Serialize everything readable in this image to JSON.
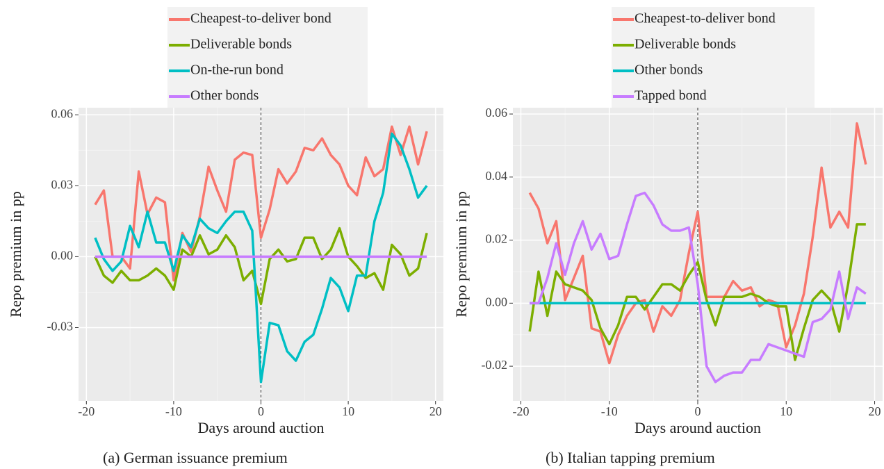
{
  "chart_data": [
    {
      "type": "line",
      "caption": "(a) German issuance premium",
      "xlabel": "Days around auction",
      "ylabel": "Repo premium in pp",
      "x": [
        -19,
        -18,
        -17,
        -16,
        -15,
        -14,
        -13,
        -12,
        -11,
        -10,
        -9,
        -8,
        -7,
        -6,
        -5,
        -4,
        -3,
        -2,
        -1,
        0,
        1,
        2,
        3,
        4,
        5,
        6,
        7,
        8,
        9,
        10,
        11,
        12,
        13,
        14,
        15,
        16,
        17,
        18,
        19
      ],
      "series": [
        {
          "name": "Cheapest-to-deliver bond",
          "color": "#F8766D",
          "values": [
            0.022,
            0.028,
            0.0,
            0.0,
            -0.005,
            0.036,
            0.018,
            0.025,
            0.023,
            -0.01,
            0.01,
            0.002,
            0.017,
            0.038,
            0.028,
            0.019,
            0.041,
            0.044,
            0.043,
            0.008,
            0.02,
            0.037,
            0.031,
            0.036,
            0.046,
            0.045,
            0.05,
            0.043,
            0.039,
            0.03,
            0.026,
            0.042,
            0.034,
            0.037,
            0.055,
            0.043,
            0.055,
            0.039,
            0.053
          ]
        },
        {
          "name": "Deliverable bonds",
          "color": "#7CAE00",
          "values": [
            0.0,
            -0.008,
            -0.011,
            -0.006,
            -0.01,
            -0.01,
            -0.008,
            -0.005,
            -0.008,
            -0.014,
            0.003,
            0.0,
            0.009,
            0.001,
            0.003,
            0.009,
            0.004,
            -0.01,
            -0.006,
            -0.02,
            -0.001,
            0.003,
            -0.002,
            -0.001,
            0.008,
            0.008,
            -0.001,
            0.003,
            0.012,
            0.0,
            -0.004,
            -0.009,
            -0.007,
            -0.014,
            0.005,
            0.001,
            -0.008,
            -0.005,
            0.01
          ]
        },
        {
          "name": "On-the-run bond",
          "color": "#00BFC4",
          "values": [
            0.008,
            -0.001,
            -0.006,
            -0.002,
            0.013,
            0.004,
            0.019,
            0.006,
            0.006,
            -0.006,
            0.009,
            0.004,
            0.016,
            0.012,
            0.01,
            0.015,
            0.019,
            0.019,
            0.011,
            -0.053,
            -0.028,
            -0.029,
            -0.04,
            -0.044,
            -0.036,
            -0.033,
            -0.022,
            -0.009,
            -0.013,
            -0.023,
            -0.008,
            -0.008,
            0.015,
            0.027,
            0.052,
            0.047,
            0.037,
            0.025,
            0.03
          ]
        },
        {
          "name": "Other bonds",
          "color": "#C77CFF",
          "values": [
            0,
            0,
            0,
            0,
            0,
            0,
            0,
            0,
            0,
            0,
            0,
            0,
            0,
            0,
            0,
            0,
            0,
            0,
            0,
            0,
            0,
            0,
            0,
            0,
            0,
            0,
            0,
            0,
            0,
            0,
            0,
            0,
            0,
            0,
            0,
            0,
            0,
            0,
            0
          ]
        }
      ],
      "xlim": [
        -20.9,
        20.9
      ],
      "ylim": [
        -0.061,
        0.063
      ],
      "xticks": [
        -20,
        -10,
        0,
        10,
        20
      ],
      "yticks": [
        -0.03,
        {
          "value": 0,
          "label": "0.00"
        },
        0.03,
        0.06
      ],
      "vline": 0,
      "grid": true
    },
    {
      "type": "line",
      "caption": "(b) Italian tapping premium",
      "xlabel": "Days around auction",
      "ylabel": "Repo premium in pp",
      "x": [
        -19,
        -18,
        -17,
        -16,
        -15,
        -14,
        -13,
        -12,
        -11,
        -10,
        -9,
        -8,
        -7,
        -6,
        -5,
        -4,
        -3,
        -2,
        -1,
        0,
        1,
        2,
        3,
        4,
        5,
        6,
        7,
        8,
        9,
        10,
        11,
        12,
        13,
        14,
        15,
        16,
        17,
        18,
        19
      ],
      "series": [
        {
          "name": "Cheapest-to-deliver bond",
          "color": "#F8766D",
          "values": [
            0.035,
            0.03,
            0.019,
            0.026,
            0.001,
            0.008,
            0.015,
            -0.008,
            -0.009,
            -0.019,
            -0.01,
            -0.004,
            0.0,
            0.001,
            -0.009,
            -0.001,
            -0.004,
            0.001,
            0.016,
            0.029,
            0.002,
            0.002,
            0.002,
            0.007,
            0.004,
            0.005,
            -0.001,
            0.001,
            0.0,
            -0.014,
            -0.007,
            0.003,
            0.021,
            0.043,
            0.024,
            0.029,
            0.024,
            0.057,
            0.044
          ]
        },
        {
          "name": "Deliverable bonds",
          "color": "#7CAE00",
          "values": [
            -0.009,
            0.01,
            -0.004,
            0.01,
            0.006,
            0.005,
            0.004,
            0.001,
            -0.008,
            -0.013,
            -0.007,
            0.002,
            0.002,
            -0.002,
            0.002,
            0.006,
            0.006,
            0.004,
            0.009,
            0.013,
            0.001,
            -0.007,
            0.002,
            0.002,
            0.002,
            0.003,
            0.002,
            0.0,
            -0.001,
            -0.001,
            -0.018,
            -0.008,
            0.001,
            0.004,
            0.001,
            -0.009,
            0.006,
            0.025,
            0.025
          ]
        },
        {
          "name": "Other bonds",
          "color": "#00BFC4",
          "values": [
            0,
            0,
            0,
            0,
            0,
            0,
            0,
            0,
            0,
            0,
            0,
            0,
            0,
            0,
            0,
            0,
            0,
            0,
            0,
            0,
            0,
            0,
            0,
            0,
            0,
            0,
            0,
            0,
            0,
            0,
            0,
            0,
            0,
            0,
            0,
            0,
            0,
            0,
            0
          ]
        },
        {
          "name": "Tapped bond",
          "color": "#C77CFF",
          "values": [
            0.0,
            0.0,
            0.008,
            0.019,
            0.009,
            0.019,
            0.026,
            0.017,
            0.022,
            0.014,
            0.015,
            0.025,
            0.034,
            0.035,
            0.031,
            0.025,
            0.023,
            0.023,
            0.024,
            0.006,
            -0.02,
            -0.025,
            -0.023,
            -0.022,
            -0.022,
            -0.018,
            -0.018,
            -0.013,
            -0.014,
            -0.015,
            -0.016,
            -0.017,
            -0.006,
            -0.005,
            -0.002,
            0.01,
            -0.005,
            0.005,
            0.003
          ]
        }
      ],
      "xlim": [
        -20.9,
        20.9
      ],
      "ylim": [
        -0.031,
        0.062
      ],
      "xticks": [
        -20,
        -10,
        0,
        10,
        20
      ],
      "yticks": [
        -0.02,
        {
          "value": 0,
          "label": "0.00"
        },
        0.02,
        0.04,
        0.06
      ],
      "vline": 0,
      "grid": true
    }
  ]
}
